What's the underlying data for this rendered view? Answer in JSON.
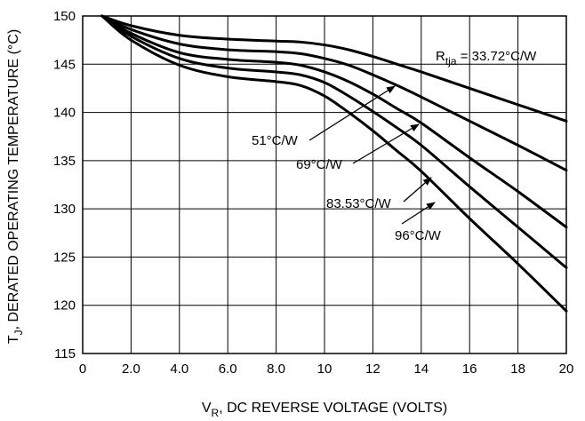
{
  "chart_data": {
    "type": "line",
    "title": "",
    "xlabel": {
      "main": "V",
      "sub": "R",
      "rest": ", DC REVERSE VOLTAGE (VOLTS)"
    },
    "ylabel": {
      "main": "T",
      "sub": "J",
      "rest": ", DERATED OPERATING TEMPERATURE (°C)"
    },
    "xlim": [
      0,
      20
    ],
    "ylim": [
      115,
      150
    ],
    "grid": true,
    "x_ticks": [
      0,
      2,
      4,
      6,
      8,
      10,
      12,
      14,
      16,
      18,
      20
    ],
    "x_tick_labels": [
      "0",
      "2.0",
      "4.0",
      "6.0",
      "8.0",
      "10",
      "12",
      "14",
      "16",
      "18",
      "20"
    ],
    "y_ticks": [
      115,
      120,
      125,
      130,
      135,
      140,
      145,
      150
    ],
    "y_tick_labels": [
      "115",
      "120",
      "125",
      "130",
      "135",
      "140",
      "145",
      "150"
    ],
    "series": [
      {
        "name": "33.72°C/W",
        "x": [
          0.8,
          2,
          4,
          6,
          8,
          9,
          10,
          11,
          12,
          13,
          14,
          16,
          18,
          20
        ],
        "y": [
          150,
          149.0,
          148.0,
          147.6,
          147.4,
          147.3,
          147.0,
          146.5,
          145.8,
          145.0,
          144.2,
          142.5,
          140.8,
          139.1
        ]
      },
      {
        "name": "51°C/W",
        "x": [
          0.8,
          2,
          4,
          6,
          8,
          9,
          10,
          11,
          12,
          13,
          14,
          16,
          18,
          20
        ],
        "y": [
          150,
          148.6,
          147.1,
          146.5,
          146.3,
          146.1,
          145.6,
          144.9,
          143.9,
          142.8,
          141.6,
          139.1,
          136.6,
          134.0
        ]
      },
      {
        "name": "69°C/W",
        "x": [
          0.8,
          2,
          4,
          6,
          8,
          9,
          10,
          11,
          12,
          13,
          14,
          16,
          18,
          20
        ],
        "y": [
          150,
          148.2,
          146.2,
          145.5,
          145.2,
          144.9,
          144.2,
          143.2,
          141.9,
          140.4,
          138.9,
          135.3,
          131.8,
          128.1
        ]
      },
      {
        "name": "83.53°C/W",
        "x": [
          0.8,
          2,
          4,
          6,
          8,
          9,
          10,
          11,
          12,
          13,
          14,
          16,
          18,
          20
        ],
        "y": [
          150,
          147.9,
          145.6,
          144.6,
          144.2,
          143.9,
          143.1,
          141.7,
          140.1,
          138.4,
          136.6,
          132.3,
          128.1,
          123.9
        ]
      },
      {
        "name": "96°C/W",
        "x": [
          0.8,
          2,
          4,
          6,
          8,
          9,
          10,
          11,
          12,
          13,
          14,
          16,
          18,
          20
        ],
        "y": [
          150,
          147.5,
          144.9,
          143.7,
          143.2,
          142.8,
          141.7,
          140.0,
          138.1,
          136.0,
          133.9,
          129.0,
          124.3,
          119.4
        ]
      }
    ],
    "annotations": [
      {
        "text_main": "R",
        "text_sub": "tja",
        "text_rest": " = 33.72°C/W",
        "series": 0
      },
      {
        "text": "51°C/W",
        "series": 1
      },
      {
        "text": "69°C/W",
        "series": 2
      },
      {
        "text": "83.53°C/W",
        "series": 3
      },
      {
        "text": "96°C/W",
        "series": 4
      }
    ]
  }
}
